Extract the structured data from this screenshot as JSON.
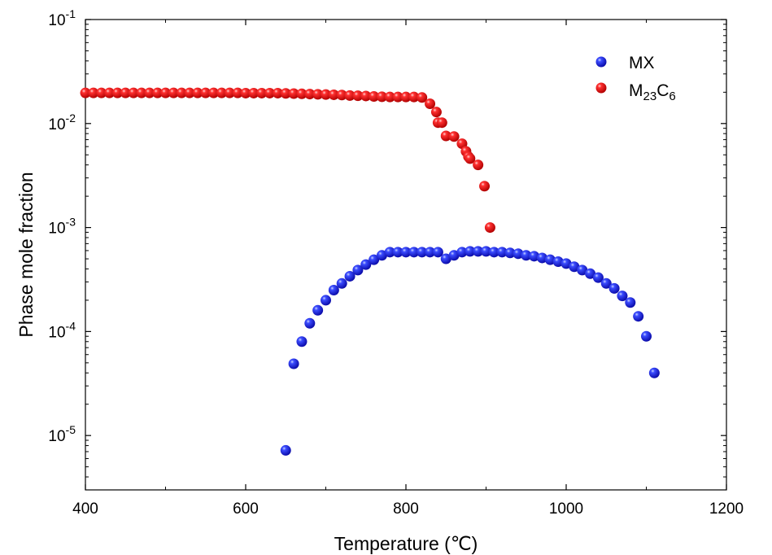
{
  "chart_data": {
    "type": "scatter",
    "xlabel": "Temperature (℃)",
    "ylabel": "Phase mole fraction",
    "xlim": [
      400,
      1200
    ],
    "ylim": [
      3e-06,
      0.1
    ],
    "yscale": "log",
    "grid": false,
    "legend_position": "top-right",
    "x_ticks": [
      {
        "value": 400,
        "label": "400"
      },
      {
        "value": 600,
        "label": "600"
      },
      {
        "value": 800,
        "label": "800"
      },
      {
        "value": 1000,
        "label": "1000"
      },
      {
        "value": 1200,
        "label": "1200"
      }
    ],
    "y_ticks": [
      {
        "value": 0.1,
        "base": "10",
        "exp": "-1"
      },
      {
        "value": 0.01,
        "base": "10",
        "exp": "-2"
      },
      {
        "value": 0.001,
        "base": "10",
        "exp": "-3"
      },
      {
        "value": 0.0001,
        "base": "10",
        "exp": "-4"
      },
      {
        "value": 1e-05,
        "base": "10",
        "exp": "-5"
      }
    ],
    "series": [
      {
        "name": "MX",
        "legend_main": "MX",
        "color": "#1f1fdd",
        "points": [
          [
            650,
            7.2e-06
          ],
          [
            660,
            4.9e-05
          ],
          [
            670,
            8e-05
          ],
          [
            680,
            0.00012
          ],
          [
            690,
            0.00016
          ],
          [
            700,
            0.0002
          ],
          [
            710,
            0.00025
          ],
          [
            720,
            0.00029
          ],
          [
            730,
            0.00034
          ],
          [
            740,
            0.00039
          ],
          [
            750,
            0.00044
          ],
          [
            760,
            0.00049
          ],
          [
            770,
            0.00054
          ],
          [
            780,
            0.00058
          ],
          [
            790,
            0.00058
          ],
          [
            800,
            0.00058
          ],
          [
            810,
            0.00058
          ],
          [
            820,
            0.00058
          ],
          [
            830,
            0.00058
          ],
          [
            840,
            0.00058
          ],
          [
            850,
            0.0005
          ],
          [
            860,
            0.00054
          ],
          [
            870,
            0.00058
          ],
          [
            880,
            0.00059
          ],
          [
            890,
            0.00059
          ],
          [
            900,
            0.00059
          ],
          [
            910,
            0.00058
          ],
          [
            920,
            0.00058
          ],
          [
            930,
            0.00057
          ],
          [
            940,
            0.00056
          ],
          [
            950,
            0.00054
          ],
          [
            960,
            0.00053
          ],
          [
            970,
            0.00051
          ],
          [
            980,
            0.00049
          ],
          [
            990,
            0.00047
          ],
          [
            1000,
            0.00045
          ],
          [
            1010,
            0.00042
          ],
          [
            1020,
            0.00039
          ],
          [
            1030,
            0.00036
          ],
          [
            1040,
            0.00033
          ],
          [
            1050,
            0.00029
          ],
          [
            1060,
            0.00026
          ],
          [
            1070,
            0.00022
          ],
          [
            1080,
            0.00019
          ],
          [
            1090,
            0.00014
          ],
          [
            1100,
            9e-05
          ],
          [
            1110,
            4e-05
          ]
        ]
      },
      {
        "name": "M23C6",
        "legend_main": "M",
        "legend_sub1": "23",
        "legend_mid": "C",
        "legend_sub2": "6",
        "color": "#ee1c1c",
        "points": [
          [
            400,
            0.0197
          ],
          [
            410,
            0.0197
          ],
          [
            420,
            0.0197
          ],
          [
            430,
            0.0197
          ],
          [
            440,
            0.0197
          ],
          [
            450,
            0.0197
          ],
          [
            460,
            0.0197
          ],
          [
            470,
            0.0197
          ],
          [
            480,
            0.0197
          ],
          [
            490,
            0.0197
          ],
          [
            500,
            0.0197
          ],
          [
            510,
            0.0197
          ],
          [
            520,
            0.0197
          ],
          [
            530,
            0.0197
          ],
          [
            540,
            0.0197
          ],
          [
            550,
            0.0197
          ],
          [
            560,
            0.0197
          ],
          [
            570,
            0.0197
          ],
          [
            580,
            0.0197
          ],
          [
            590,
            0.0197
          ],
          [
            600,
            0.0196
          ],
          [
            610,
            0.0196
          ],
          [
            620,
            0.0196
          ],
          [
            630,
            0.0196
          ],
          [
            640,
            0.0196
          ],
          [
            650,
            0.0195
          ],
          [
            660,
            0.0194
          ],
          [
            670,
            0.0193
          ],
          [
            680,
            0.0192
          ],
          [
            690,
            0.0191
          ],
          [
            700,
            0.019
          ],
          [
            710,
            0.0189
          ],
          [
            720,
            0.0188
          ],
          [
            730,
            0.0186
          ],
          [
            740,
            0.0185
          ],
          [
            750,
            0.0184
          ],
          [
            760,
            0.0182
          ],
          [
            770,
            0.0181
          ],
          [
            780,
            0.018
          ],
          [
            790,
            0.018
          ],
          [
            800,
            0.018
          ],
          [
            810,
            0.018
          ],
          [
            820,
            0.0178
          ],
          [
            830,
            0.0155
          ],
          [
            838,
            0.0129
          ],
          [
            840,
            0.0102
          ],
          [
            845,
            0.0102
          ],
          [
            850,
            0.0076
          ],
          [
            860,
            0.0075
          ],
          [
            870,
            0.0064
          ],
          [
            875,
            0.0054
          ],
          [
            878,
            0.0048
          ],
          [
            880,
            0.0046
          ],
          [
            890,
            0.004
          ],
          [
            898,
            0.0025
          ],
          [
            905,
            0.001
          ]
        ]
      }
    ]
  }
}
